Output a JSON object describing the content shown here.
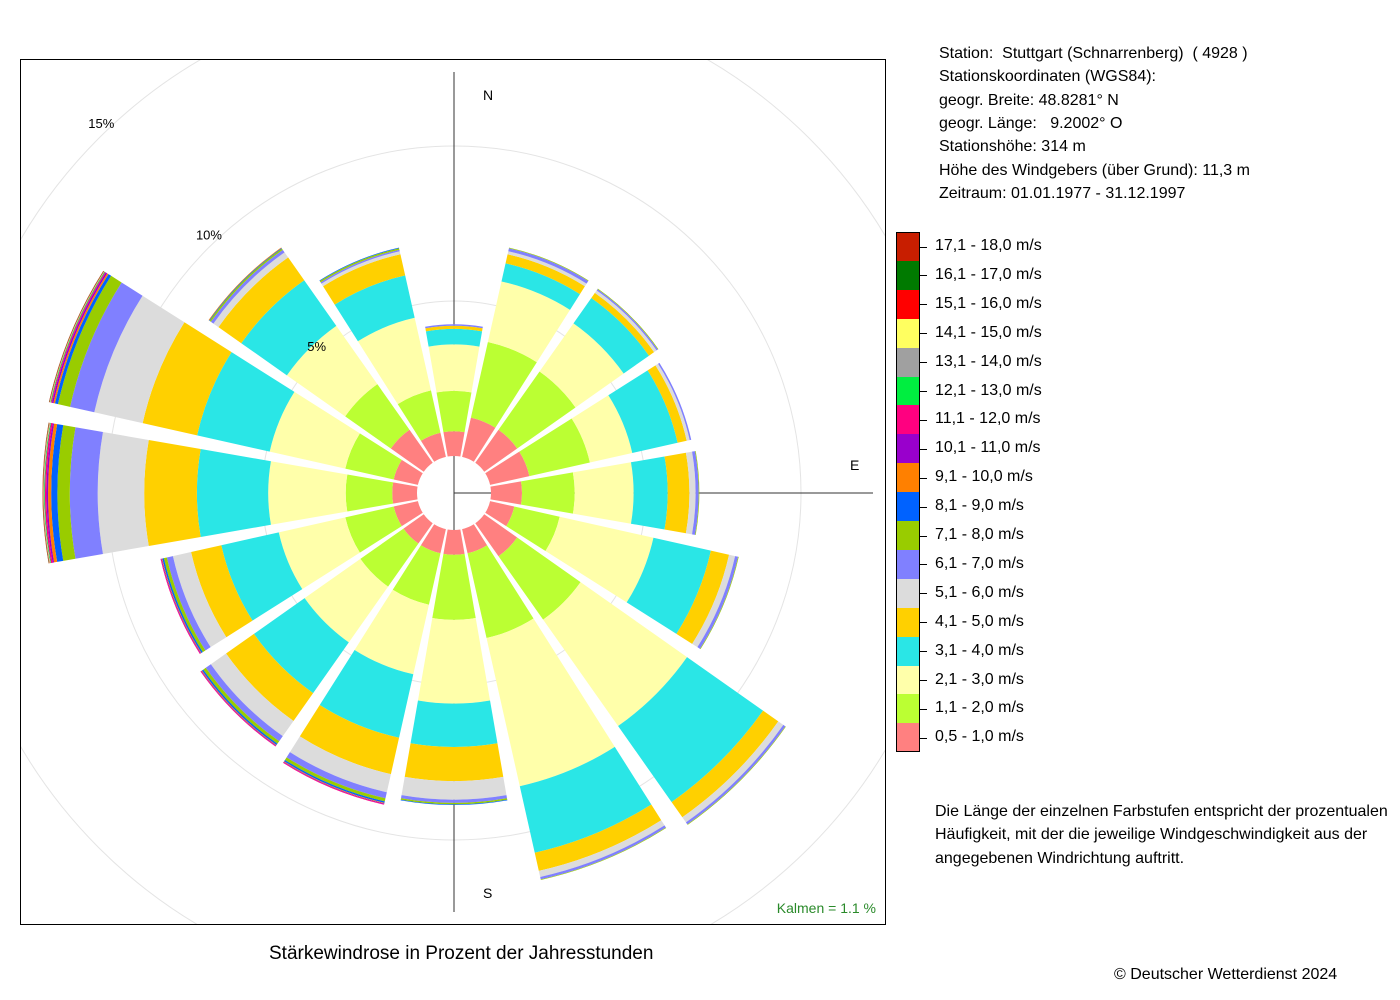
{
  "chart_data": {
    "type": "polar-stacked-bar",
    "title": "Stärkewindrose in Prozent der Jahresstunden",
    "directions": [
      "N",
      "NNE",
      "NE",
      "ENE",
      "E",
      "ESE",
      "SE",
      "SSE",
      "S",
      "SSW",
      "SW",
      "WSW",
      "W",
      "WNW",
      "NW",
      "NNW"
    ],
    "axis_labels": [
      "N",
      "E",
      "S"
    ],
    "radial_ticks": [
      {
        "value": 5,
        "label": "5%"
      },
      {
        "value": 10,
        "label": "10%"
      },
      {
        "value": 15,
        "label": "15%"
      }
    ],
    "calm": "Kalmen  =  1.1 %",
    "series": [
      {
        "name": "0,5 - 1,0 m/s",
        "color": "#ff8080",
        "values": [
          0.8,
          1.3,
          1.3,
          1.3,
          1.0,
          0.8,
          1.3,
          0.8,
          0.8,
          0.8,
          0.8,
          0.8,
          0.8,
          0.8,
          1.3,
          0.8
        ]
      },
      {
        "name": "1,1 - 2,0 m/s",
        "color": "#bbff33",
        "values": [
          1.3,
          2.5,
          2.3,
          2.0,
          1.7,
          1.5,
          2.5,
          2.8,
          2.1,
          1.7,
          1.7,
          1.6,
          1.5,
          1.6,
          1.8,
          1.4
        ]
      },
      {
        "name": "2,1 - 3,0 m/s",
        "color": "#ffffaa",
        "values": [
          1.5,
          2.0,
          1.9,
          1.4,
          1.9,
          3.1,
          4.2,
          4.9,
          2.7,
          2.3,
          2.2,
          2.2,
          2.5,
          2.5,
          2.3,
          2.4
        ]
      },
      {
        "name": "3,1 - 4,0 m/s",
        "color": "#2ae6e6",
        "values": [
          0.5,
          0.6,
          1.0,
          1.5,
          1.1,
          1.9,
          3.0,
          2.2,
          1.4,
          2.1,
          2.0,
          1.9,
          2.3,
          2.4,
          1.8,
          1.4
        ]
      },
      {
        "name": "4,1 - 5,0 m/s",
        "color": "#ffd000",
        "values": [
          0.1,
          0.3,
          0.2,
          0.3,
          0.7,
          0.6,
          0.6,
          0.6,
          1.1,
          1.2,
          1.1,
          1.0,
          1.7,
          1.8,
          0.9,
          0.7
        ]
      },
      {
        "name": "5,1 - 6,0 m/s",
        "color": "#dcdcdc",
        "values": [
          0.0,
          0.1,
          0.1,
          0.1,
          0.2,
          0.2,
          0.2,
          0.2,
          0.6,
          0.6,
          0.6,
          0.6,
          1.5,
          1.6,
          0.2,
          0.1
        ]
      },
      {
        "name": "6,1 - 7,0 m/s",
        "color": "#8080ff",
        "values": [
          0.05,
          0.1,
          0.05,
          0.05,
          0.1,
          0.1,
          0.08,
          0.08,
          0.1,
          0.2,
          0.2,
          0.2,
          0.9,
          0.8,
          0.1,
          0.05
        ]
      },
      {
        "name": "7,1 - 8,0 m/s",
        "color": "#99cc00",
        "values": [
          0.0,
          0.02,
          0.02,
          0.0,
          0.02,
          0.02,
          0.02,
          0.02,
          0.05,
          0.1,
          0.1,
          0.1,
          0.4,
          0.4,
          0.05,
          0.05
        ]
      },
      {
        "name": "8,1 - 9,0 m/s",
        "color": "#0062ff",
        "values": [
          0,
          0,
          0,
          0,
          0,
          0,
          0,
          0,
          0.02,
          0.05,
          0.05,
          0.05,
          0.2,
          0.1,
          0.02,
          0.02
        ]
      },
      {
        "name": "9,1 - 10,0 m/s",
        "color": "#ff8000",
        "values": [
          0,
          0,
          0,
          0,
          0,
          0,
          0,
          0,
          0,
          0.02,
          0.02,
          0.02,
          0.1,
          0.05,
          0.02,
          0
        ]
      },
      {
        "name": "10,1 - 11,0 m/s",
        "color": "#9900cc",
        "values": [
          0,
          0,
          0,
          0,
          0,
          0,
          0,
          0,
          0,
          0.02,
          0.02,
          0.02,
          0.05,
          0.05,
          0,
          0
        ]
      },
      {
        "name": "11,1 - 12,0 m/s",
        "color": "#ff0080",
        "values": [
          0,
          0,
          0,
          0,
          0,
          0,
          0,
          0,
          0,
          0.02,
          0.02,
          0.02,
          0.05,
          0.03,
          0,
          0
        ]
      },
      {
        "name": "12,1 - 13,0 m/s",
        "color": "#00ee40",
        "values": [
          0,
          0,
          0,
          0,
          0,
          0,
          0,
          0,
          0,
          0,
          0,
          0,
          0.02,
          0.02,
          0,
          0
        ]
      },
      {
        "name": "13,1 - 14,0 m/s",
        "color": "#a0a0a0",
        "values": [
          0,
          0,
          0,
          0,
          0,
          0,
          0,
          0,
          0,
          0,
          0,
          0,
          0.02,
          0.01,
          0,
          0
        ]
      },
      {
        "name": "14,1 - 15,0 m/s",
        "color": "#ffff60",
        "values": [
          0,
          0,
          0,
          0,
          0,
          0,
          0,
          0,
          0,
          0,
          0,
          0,
          0.01,
          0.01,
          0,
          0
        ]
      },
      {
        "name": "15,1 - 16,0 m/s",
        "color": "#ff0000",
        "values": [
          0,
          0,
          0,
          0,
          0,
          0,
          0,
          0,
          0,
          0,
          0,
          0,
          0.01,
          0.01,
          0,
          0
        ]
      },
      {
        "name": "16,1 - 17,0 m/s",
        "color": "#007a00",
        "values": [
          0,
          0,
          0,
          0,
          0,
          0,
          0,
          0,
          0,
          0,
          0,
          0,
          0.01,
          0.01,
          0,
          0
        ]
      },
      {
        "name": "17,1 - 18,0 m/s",
        "color": "#c81e00",
        "values": [
          0,
          0,
          0,
          0,
          0,
          0,
          0,
          0,
          0,
          0,
          0,
          0,
          0.01,
          0.01,
          0,
          0
        ]
      }
    ]
  },
  "station_info": [
    "Station:  Stuttgart (Schnarrenberg)  ( 4928 )",
    "Stationskoordinaten (WGS84):",
    "geogr. Breite: 48.8281° N",
    "geogr. Länge:   9.2002° O",
    "Stationshöhe: 314 m",
    "Höhe des Windgebers (über Grund): 11,3 m",
    "Zeitraum: 01.01.1977 - 31.12.1997"
  ],
  "note": [
    "Die Länge der einzelnen Farbstufen entspricht der prozentualen",
    "Häufigkeit, mit der die jeweilige Windgeschwindigkeit aus der",
    "angegebenen Windrichtung auftritt."
  ],
  "copyright": "© Deutscher Wetterdienst  2024"
}
